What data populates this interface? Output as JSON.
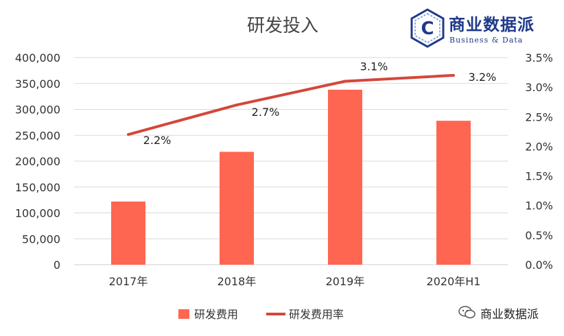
{
  "chart_data": {
    "type": "bar",
    "title": "研发投入",
    "categories": [
      "2017年",
      "2018年",
      "2019年",
      "2020年H1"
    ],
    "series": [
      {
        "name": "研发费用",
        "type": "bar",
        "axis": "left",
        "values": [
          122000,
          218000,
          338000,
          278000
        ],
        "color": "#ff6651"
      },
      {
        "name": "研发费用率",
        "type": "line",
        "axis": "right",
        "values": [
          2.2,
          2.7,
          3.1,
          3.2
        ],
        "labels": [
          "2.2%",
          "2.7%",
          "3.1%",
          "3.2%"
        ],
        "color": "#d4473a"
      }
    ],
    "left_axis": {
      "range": [
        0,
        400000
      ],
      "ticks": [
        "0",
        "50,000",
        "100,000",
        "150,000",
        "200,000",
        "250,000",
        "300,000",
        "350,000",
        "400,000"
      ]
    },
    "right_axis": {
      "range": [
        0,
        3.5
      ],
      "ticks": [
        "0.0%",
        "0.5%",
        "1.0%",
        "1.5%",
        "2.0%",
        "2.5%",
        "3.0%",
        "3.5%"
      ]
    },
    "grid": true,
    "legend_position": "bottom"
  },
  "branding": {
    "logo_name": "商业数据派",
    "logo_sub": "Business & Data",
    "logo_letter": "C",
    "watermark_text": "商业数据派",
    "watermark_icon": "wechat-icon",
    "brand_color": "#1f3a8a"
  }
}
